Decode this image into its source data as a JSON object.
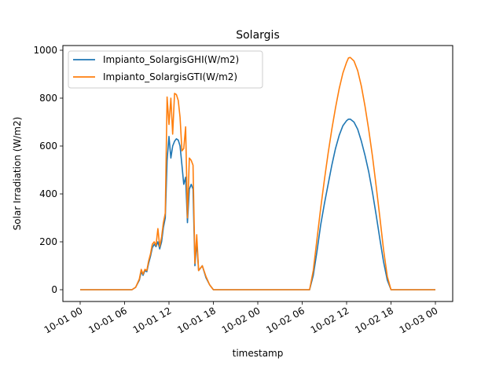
{
  "chart_data": {
    "type": "line",
    "title": "Solargis",
    "xlabel": "timestamp",
    "ylabel": "Solar Irradiation (W/m2)",
    "xlim": [
      "2023-10-01 00:00",
      "2023-10-03 00:00"
    ],
    "ylim": [
      0,
      1000
    ],
    "grid": false,
    "legend_position": "top-left",
    "x_ticks": [
      {
        "value": "2023-10-01 00:00",
        "label": "10-01 00"
      },
      {
        "value": "2023-10-01 06:00",
        "label": "10-01 06"
      },
      {
        "value": "2023-10-01 12:00",
        "label": "10-01 12"
      },
      {
        "value": "2023-10-01 18:00",
        "label": "10-01 18"
      },
      {
        "value": "2023-10-02 00:00",
        "label": "10-02 00"
      },
      {
        "value": "2023-10-02 06:00",
        "label": "10-02 06"
      },
      {
        "value": "2023-10-02 12:00",
        "label": "10-02 12"
      },
      {
        "value": "2023-10-02 18:00",
        "label": "10-02 18"
      },
      {
        "value": "2023-10-03 00:00",
        "label": "10-03 00"
      }
    ],
    "y_ticks": [
      0,
      200,
      400,
      600,
      800,
      1000
    ],
    "series": [
      {
        "name": "Impianto_SolargisGHI(W/m2)",
        "color": "#1f77b4",
        "points": [
          [
            "2023-10-01 00:00",
            0
          ],
          [
            "2023-10-01 07:00",
            0
          ],
          [
            "2023-10-01 07:30",
            10
          ],
          [
            "2023-10-01 08:00",
            40
          ],
          [
            "2023-10-01 08:15",
            75
          ],
          [
            "2023-10-01 08:30",
            60
          ],
          [
            "2023-10-01 08:45",
            80
          ],
          [
            "2023-10-01 09:00",
            75
          ],
          [
            "2023-10-01 09:15",
            110
          ],
          [
            "2023-10-01 09:30",
            140
          ],
          [
            "2023-10-01 09:45",
            175
          ],
          [
            "2023-10-01 10:00",
            190
          ],
          [
            "2023-10-01 10:15",
            180
          ],
          [
            "2023-10-01 10:30",
            200
          ],
          [
            "2023-10-01 10:45",
            170
          ],
          [
            "2023-10-01 11:00",
            200
          ],
          [
            "2023-10-01 11:15",
            260
          ],
          [
            "2023-10-01 11:30",
            300
          ],
          [
            "2023-10-01 11:45",
            540
          ],
          [
            "2023-10-01 12:00",
            640
          ],
          [
            "2023-10-01 12:15",
            550
          ],
          [
            "2023-10-01 12:30",
            600
          ],
          [
            "2023-10-01 12:45",
            620
          ],
          [
            "2023-10-01 13:00",
            630
          ],
          [
            "2023-10-01 13:15",
            625
          ],
          [
            "2023-10-01 13:30",
            600
          ],
          [
            "2023-10-01 13:45",
            520
          ],
          [
            "2023-10-01 14:00",
            440
          ],
          [
            "2023-10-01 14:15",
            470
          ],
          [
            "2023-10-01 14:30",
            280
          ],
          [
            "2023-10-01 14:45",
            420
          ],
          [
            "2023-10-01 15:00",
            440
          ],
          [
            "2023-10-01 15:15",
            420
          ],
          [
            "2023-10-01 15:30",
            100
          ],
          [
            "2023-10-01 15:45",
            200
          ],
          [
            "2023-10-01 16:00",
            80
          ],
          [
            "2023-10-01 16:30",
            100
          ],
          [
            "2023-10-01 17:00",
            50
          ],
          [
            "2023-10-01 17:30",
            20
          ],
          [
            "2023-10-01 18:00",
            0
          ],
          [
            "2023-10-02 07:00",
            0
          ],
          [
            "2023-10-02 07:30",
            60
          ],
          [
            "2023-10-02 08:00",
            160
          ],
          [
            "2023-10-02 08:30",
            270
          ],
          [
            "2023-10-02 09:00",
            360
          ],
          [
            "2023-10-02 09:30",
            440
          ],
          [
            "2023-10-02 10:00",
            520
          ],
          [
            "2023-10-02 10:30",
            590
          ],
          [
            "2023-10-02 11:00",
            645
          ],
          [
            "2023-10-02 11:30",
            685
          ],
          [
            "2023-10-02 12:00",
            706
          ],
          [
            "2023-10-02 12:15",
            712
          ],
          [
            "2023-10-02 12:30",
            712
          ],
          [
            "2023-10-02 13:00",
            700
          ],
          [
            "2023-10-02 13:30",
            670
          ],
          [
            "2023-10-02 14:00",
            620
          ],
          [
            "2023-10-02 14:30",
            560
          ],
          [
            "2023-10-02 15:00",
            490
          ],
          [
            "2023-10-02 15:30",
            405
          ],
          [
            "2023-10-02 16:00",
            310
          ],
          [
            "2023-10-02 16:30",
            210
          ],
          [
            "2023-10-02 17:00",
            115
          ],
          [
            "2023-10-02 17:30",
            40
          ],
          [
            "2023-10-02 18:00",
            0
          ],
          [
            "2023-10-03 00:00",
            0
          ]
        ]
      },
      {
        "name": "Impianto_SolargisGTI(W/m2)",
        "color": "#ff7f0e",
        "points": [
          [
            "2023-10-01 00:00",
            0
          ],
          [
            "2023-10-01 07:00",
            0
          ],
          [
            "2023-10-01 07:30",
            10
          ],
          [
            "2023-10-01 08:00",
            45
          ],
          [
            "2023-10-01 08:15",
            85
          ],
          [
            "2023-10-01 08:30",
            65
          ],
          [
            "2023-10-01 08:45",
            85
          ],
          [
            "2023-10-01 09:00",
            80
          ],
          [
            "2023-10-01 09:15",
            120
          ],
          [
            "2023-10-01 09:30",
            150
          ],
          [
            "2023-10-01 09:45",
            190
          ],
          [
            "2023-10-01 10:00",
            200
          ],
          [
            "2023-10-01 10:15",
            185
          ],
          [
            "2023-10-01 10:30",
            255
          ],
          [
            "2023-10-01 10:45",
            180
          ],
          [
            "2023-10-01 11:00",
            220
          ],
          [
            "2023-10-01 11:15",
            280
          ],
          [
            "2023-10-01 11:30",
            320
          ],
          [
            "2023-10-01 11:45",
            805
          ],
          [
            "2023-10-01 12:00",
            690
          ],
          [
            "2023-10-01 12:15",
            800
          ],
          [
            "2023-10-01 12:30",
            650
          ],
          [
            "2023-10-01 12:45",
            820
          ],
          [
            "2023-10-01 13:00",
            815
          ],
          [
            "2023-10-01 13:15",
            790
          ],
          [
            "2023-10-01 13:30",
            720
          ],
          [
            "2023-10-01 13:45",
            580
          ],
          [
            "2023-10-01 14:00",
            590
          ],
          [
            "2023-10-01 14:15",
            680
          ],
          [
            "2023-10-01 14:30",
            300
          ],
          [
            "2023-10-01 14:45",
            550
          ],
          [
            "2023-10-01 15:00",
            540
          ],
          [
            "2023-10-01 15:15",
            520
          ],
          [
            "2023-10-01 15:30",
            110
          ],
          [
            "2023-10-01 15:45",
            230
          ],
          [
            "2023-10-01 16:00",
            80
          ],
          [
            "2023-10-01 16:30",
            100
          ],
          [
            "2023-10-01 17:00",
            55
          ],
          [
            "2023-10-01 17:30",
            20
          ],
          [
            "2023-10-01 18:00",
            0
          ],
          [
            "2023-10-02 07:00",
            0
          ],
          [
            "2023-10-02 07:30",
            80
          ],
          [
            "2023-10-02 08:00",
            210
          ],
          [
            "2023-10-02 08:30",
            340
          ],
          [
            "2023-10-02 09:00",
            460
          ],
          [
            "2023-10-02 09:30",
            570
          ],
          [
            "2023-10-02 10:00",
            670
          ],
          [
            "2023-10-02 10:30",
            760
          ],
          [
            "2023-10-02 11:00",
            840
          ],
          [
            "2023-10-02 11:30",
            905
          ],
          [
            "2023-10-02 12:00",
            950
          ],
          [
            "2023-10-02 12:15",
            968
          ],
          [
            "2023-10-02 12:30",
            970
          ],
          [
            "2023-10-02 13:00",
            955
          ],
          [
            "2023-10-02 13:30",
            915
          ],
          [
            "2023-10-02 14:00",
            850
          ],
          [
            "2023-10-02 14:30",
            765
          ],
          [
            "2023-10-02 15:00",
            665
          ],
          [
            "2023-10-02 15:30",
            555
          ],
          [
            "2023-10-02 16:00",
            430
          ],
          [
            "2023-10-02 16:30",
            300
          ],
          [
            "2023-10-02 17:00",
            165
          ],
          [
            "2023-10-02 17:30",
            55
          ],
          [
            "2023-10-02 18:00",
            0
          ],
          [
            "2023-10-03 00:00",
            0
          ]
        ]
      }
    ]
  }
}
